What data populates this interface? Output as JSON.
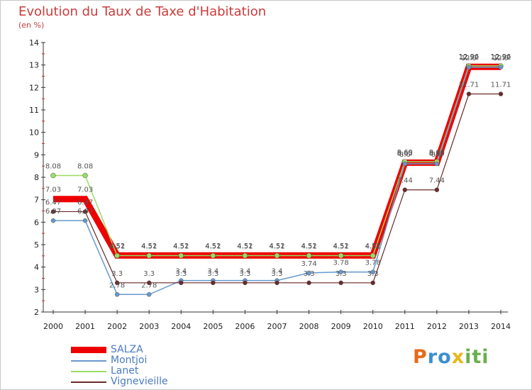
{
  "title": "Evolution du Taux de Taxe d'Habitation",
  "subtitle": "(en %)",
  "logo": {
    "p": "P",
    "r": "r",
    "o": "o",
    "x": "x",
    "i": "i",
    "t": "t",
    "i2": "i"
  },
  "colors": {
    "salza": "#ee0000",
    "montjoi": "#6699cc",
    "lanet": "#99dd66",
    "vignevieille": "#6b2a2a",
    "title": "#cc3b3b"
  },
  "chart_data": {
    "type": "line",
    "title": "Evolution du Taux de Taxe d'Habitation",
    "ylabel": "(en %)",
    "ylim": [
      2,
      14
    ],
    "yticks": [
      "2",
      "3",
      "4",
      "5",
      "6",
      "7",
      "8",
      "9",
      "10",
      "11",
      "12",
      "13",
      "14"
    ],
    "x": [
      "2000",
      "2001",
      "2002",
      "2003",
      "2004",
      "2005",
      "2006",
      "2007",
      "2008",
      "2009",
      "2010",
      "2011",
      "2012",
      "2013",
      "2014"
    ],
    "series": [
      {
        "name": "SALZA",
        "values": [
          7.03,
          7.03,
          4.52,
          4.52,
          4.52,
          4.52,
          4.52,
          4.52,
          4.52,
          4.52,
          4.52,
          8.65,
          8.65,
          12.92,
          12.92
        ],
        "labels": [
          "7.03",
          "7.03",
          "4.52",
          "4.52",
          "4.52",
          "4.52",
          "4.52",
          "4.52",
          "4.52",
          "4.52",
          "4.52",
          "8.65",
          "8.65",
          "12.92",
          "12.92"
        ]
      },
      {
        "name": "Montjoi",
        "values": [
          6.07,
          6.07,
          2.78,
          2.78,
          3.4,
          3.4,
          3.4,
          3.4,
          3.74,
          3.78,
          3.78,
          8.6,
          8.6,
          12.9,
          12.9
        ],
        "labels": [
          "6.07",
          "6.07",
          "2.78",
          "2.78",
          "3.4",
          "3.4",
          "3.4",
          "3.4",
          "3.74",
          "3.78",
          "3.78",
          "8.6",
          "8.6",
          "12.9",
          "12.9"
        ]
      },
      {
        "name": "Lanet",
        "values": [
          8.08,
          8.08,
          4.51,
          4.51,
          4.51,
          4.51,
          4.51,
          4.51,
          4.51,
          4.51,
          4.51,
          8.69,
          8.69,
          12.96,
          12.96
        ],
        "labels": [
          "8.08",
          "8.08",
          "4.51",
          "4.51",
          "4.51",
          "4.51",
          "4.51",
          "4.51",
          "4.51",
          "4.51",
          "4.51",
          "8.69",
          "8.69",
          "12.96",
          "12.96"
        ]
      },
      {
        "name": "Vignevieille",
        "values": [
          6.47,
          6.47,
          3.3,
          3.3,
          3.3,
          3.3,
          3.3,
          3.3,
          3.3,
          3.3,
          3.3,
          7.44,
          7.44,
          11.71,
          11.71
        ],
        "labels": [
          "6.47",
          "6.47",
          "3.3",
          "3.3",
          "3.3",
          "3.3",
          "3.3",
          "3.3",
          "3.3",
          "3.3",
          "3.3",
          "7.44",
          "7.44",
          "11.71",
          "11.71"
        ]
      }
    ],
    "legend": "bottom-left",
    "grid": false
  }
}
